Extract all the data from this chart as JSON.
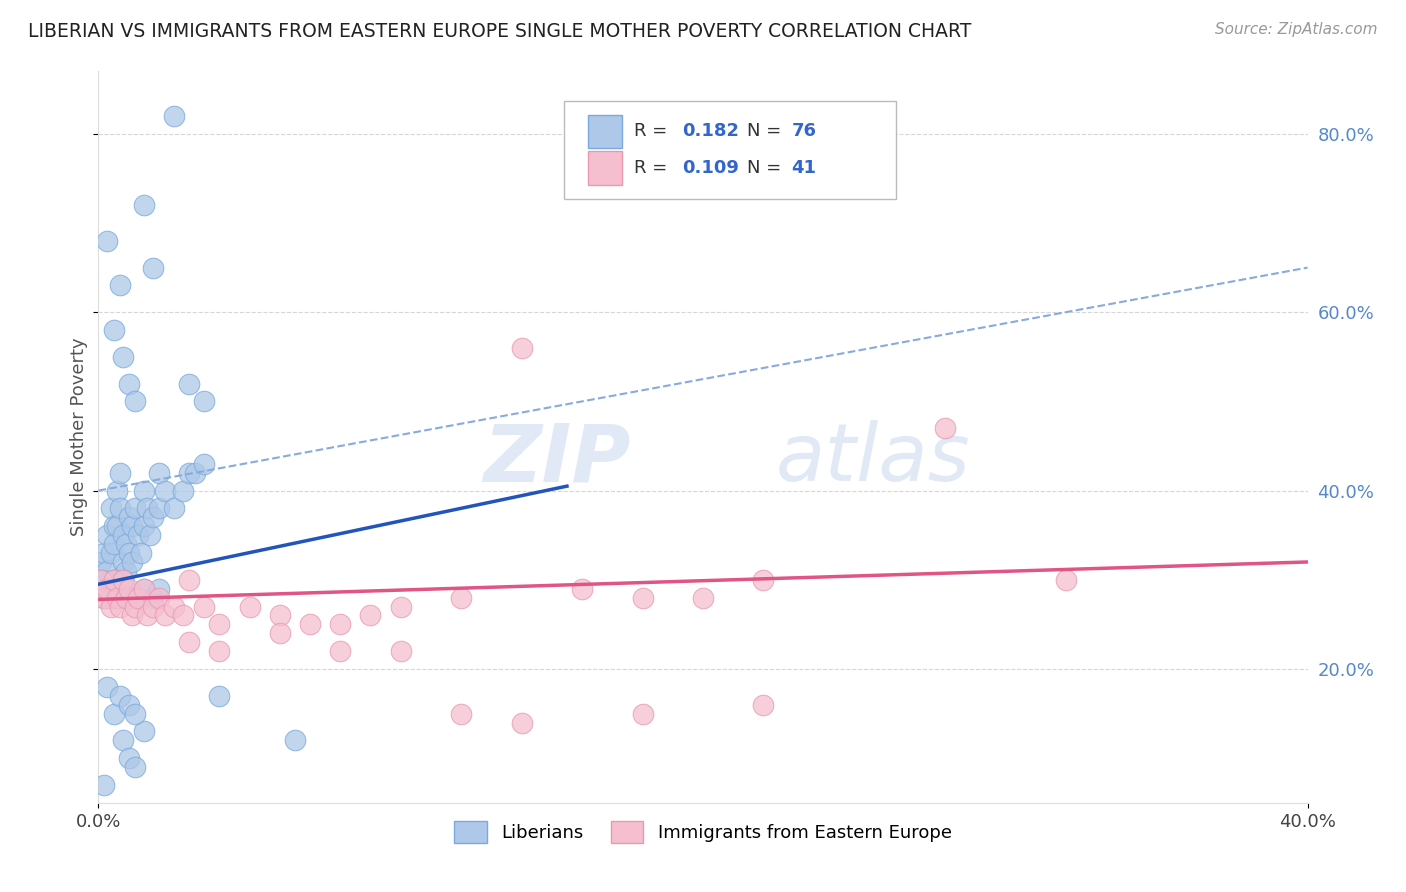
{
  "title": "LIBERIAN VS IMMIGRANTS FROM EASTERN EUROPE SINGLE MOTHER POVERTY CORRELATION CHART",
  "source": "Source: ZipAtlas.com",
  "ylabel": "Single Mother Poverty",
  "xlim": [
    0.0,
    0.4
  ],
  "ylim": [
    0.05,
    0.87
  ],
  "xtick_positions": [
    0.0,
    0.4
  ],
  "xtick_labels": [
    "0.0%",
    "40.0%"
  ],
  "ytick_positions": [
    0.2,
    0.4,
    0.6,
    0.8
  ],
  "ytick_labels": [
    "20.0%",
    "40.0%",
    "60.0%",
    "80.0%"
  ],
  "liberian_color": "#adc8e8",
  "eastern_color": "#f5bfcf",
  "liberian_edge": "#7aaadd",
  "eastern_edge": "#e899b0",
  "trend_blue_solid_color": "#2255bb",
  "trend_pink_color": "#e05585",
  "trend_blue_dashed_color": "#88aadd",
  "legend_label1": "Liberians",
  "legend_label2": "Immigrants from Eastern Europe",
  "watermark_zip": "ZIP",
  "watermark_atlas": "atlas",
  "grid_color": "#cccccc",
  "ytick_color": "#5588cc",
  "title_color": "#222222",
  "source_color": "#999999"
}
